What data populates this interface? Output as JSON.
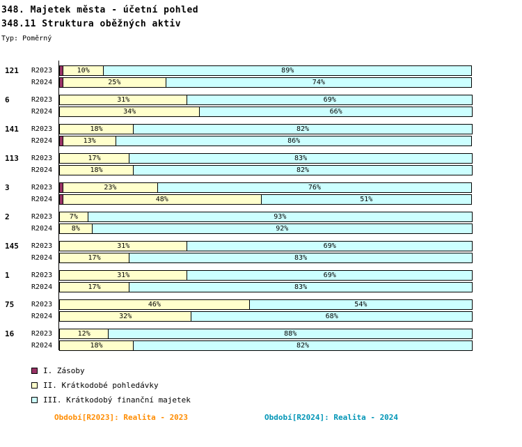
{
  "header": {
    "title": "348. Majetek města - účetní pohled",
    "subtitle": "348.11 Struktura oběžných aktiv",
    "type_label": "Typ: Poměrný"
  },
  "chart_data": {
    "type": "bar",
    "orientation": "horizontal",
    "stacked": true,
    "unit": "%",
    "xlim": [
      0,
      100
    ],
    "grid": false,
    "series_names": [
      "I. Zásoby",
      "II. Krátkodobé pohledávky",
      "III. Krátkodobý finanční majetek"
    ],
    "colors": [
      "#993366",
      "#FFFFCC",
      "#CCFFFF"
    ],
    "groups": [
      {
        "label": "121",
        "rows": [
          {
            "label": "R2023",
            "values": [
              1,
              10,
              89
            ]
          },
          {
            "label": "R2024",
            "values": [
              1,
              25,
              74
            ]
          }
        ]
      },
      {
        "label": "6",
        "rows": [
          {
            "label": "R2023",
            "values": [
              0,
              31,
              69
            ]
          },
          {
            "label": "R2024",
            "values": [
              0,
              34,
              66
            ]
          }
        ]
      },
      {
        "label": "141",
        "rows": [
          {
            "label": "R2023",
            "values": [
              0,
              18,
              82
            ]
          },
          {
            "label": "R2024",
            "values": [
              1,
              13,
              86
            ]
          }
        ]
      },
      {
        "label": "113",
        "rows": [
          {
            "label": "R2023",
            "values": [
              0,
              17,
              83
            ]
          },
          {
            "label": "R2024",
            "values": [
              0,
              18,
              82
            ]
          }
        ]
      },
      {
        "label": "3",
        "rows": [
          {
            "label": "R2023",
            "values": [
              1,
              23,
              76
            ]
          },
          {
            "label": "R2024",
            "values": [
              1,
              48,
              51
            ]
          }
        ]
      },
      {
        "label": "2",
        "rows": [
          {
            "label": "R2023",
            "values": [
              0,
              7,
              93
            ]
          },
          {
            "label": "R2024",
            "values": [
              0,
              8,
              92
            ]
          }
        ]
      },
      {
        "label": "145",
        "rows": [
          {
            "label": "R2023",
            "values": [
              0,
              31,
              69
            ]
          },
          {
            "label": "R2024",
            "values": [
              0,
              17,
              83
            ]
          }
        ]
      },
      {
        "label": "1",
        "rows": [
          {
            "label": "R2023",
            "values": [
              0,
              31,
              69
            ]
          },
          {
            "label": "R2024",
            "values": [
              0,
              17,
              83
            ]
          }
        ]
      },
      {
        "label": "75",
        "rows": [
          {
            "label": "R2023",
            "values": [
              0,
              46,
              54
            ]
          },
          {
            "label": "R2024",
            "values": [
              0,
              32,
              68
            ]
          }
        ]
      },
      {
        "label": "16",
        "rows": [
          {
            "label": "R2023",
            "values": [
              0,
              12,
              88
            ]
          },
          {
            "label": "R2024",
            "values": [
              0,
              18,
              82
            ]
          }
        ]
      }
    ],
    "legend": [
      {
        "label": "I. Zásoby",
        "color": "#993366"
      },
      {
        "label": "II. Krátkodobé pohledávky",
        "color": "#FFFFCC"
      },
      {
        "label": "III. Krátkodobý finanční majetek",
        "color": "#CCFFFF"
      }
    ],
    "legend_position": "bottom-left"
  },
  "footer": {
    "left": "Období[R2023]: Realita - 2023",
    "left_color": "#FF8C00",
    "right": "Období[R2024]: Realita - 2024",
    "right_color": "#0095B6"
  }
}
